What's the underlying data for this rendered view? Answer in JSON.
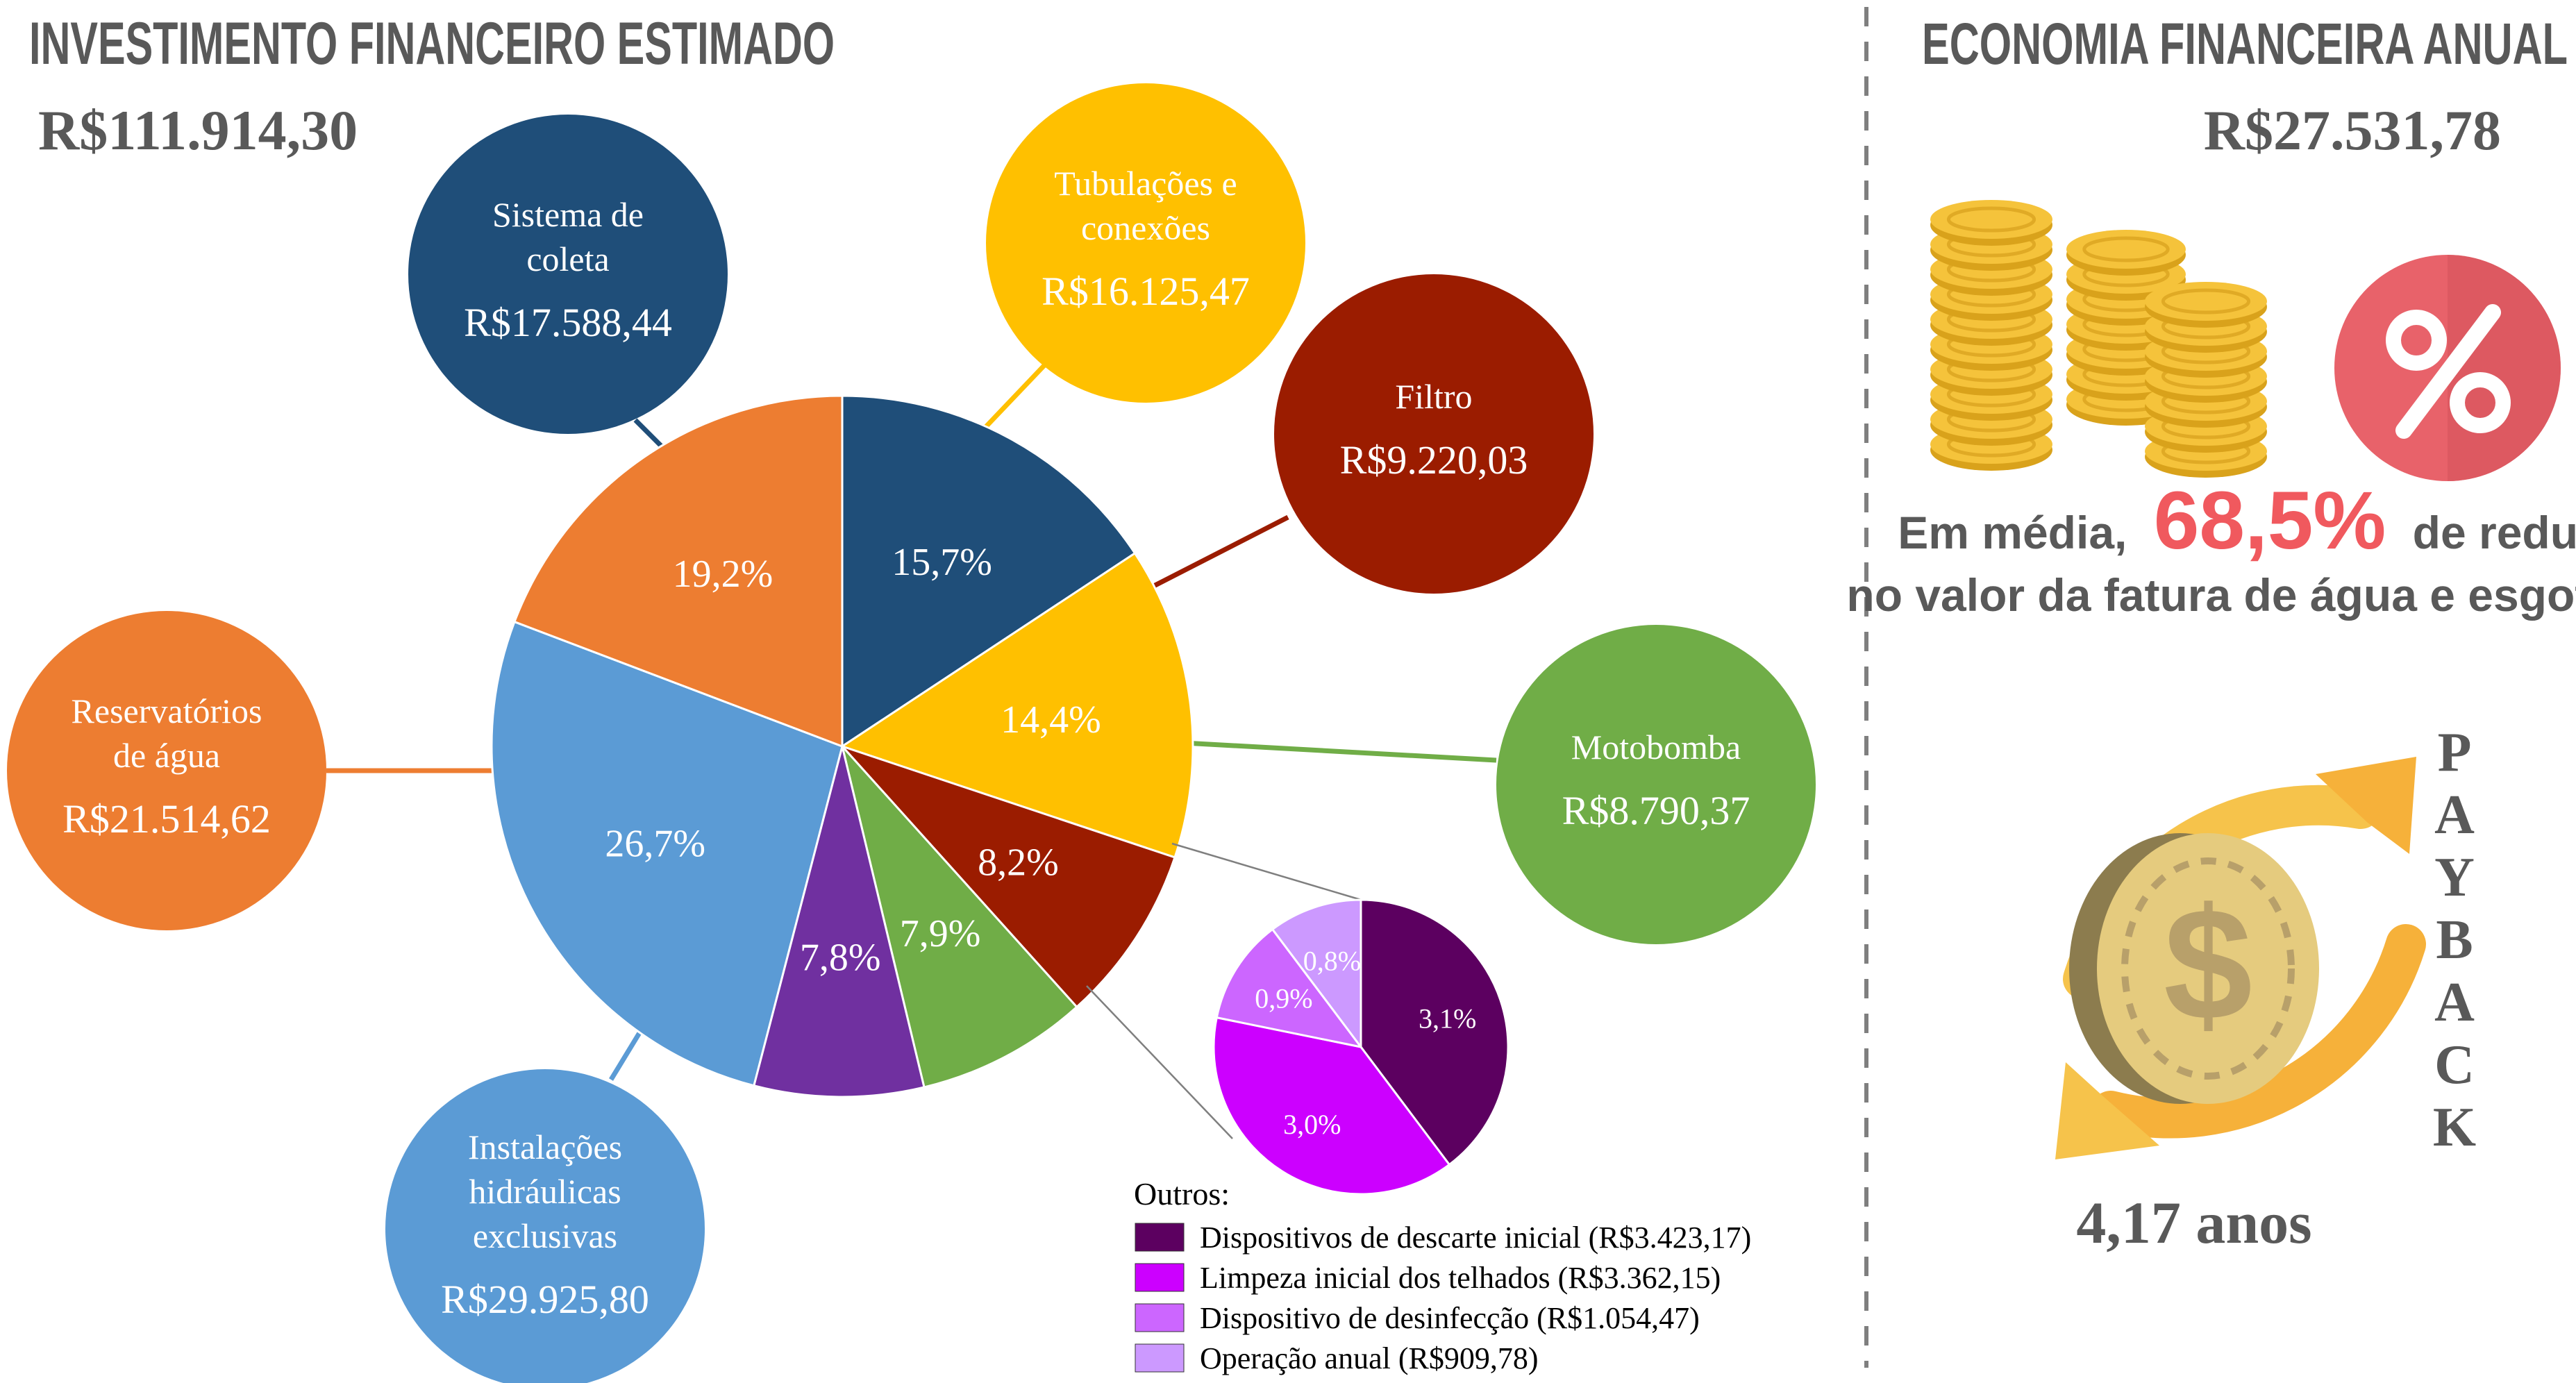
{
  "left_panel": {
    "title": "INVESTIMENTO FINANCEIRO ESTIMADO",
    "total": "R$111.914,30"
  },
  "right_panel": {
    "title": "ECONOMIA FINANCEIRA ANUAL",
    "total": "R$27.531,78",
    "reduction_prefix": "Em média,",
    "reduction_value": "68,5%",
    "reduction_suffix": "de redução",
    "reduction_line2": "no valor da fatura de água e esgoto",
    "payback_label": "PAYBACK",
    "payback_value": "4,17 anos"
  },
  "chart_data": [
    {
      "type": "pie",
      "unit": "percent",
      "slices": [
        {
          "label": "Sistema de coleta",
          "amount": "R$17.588,44",
          "value": 15.7,
          "value_label": "15,7%",
          "color": "#1F4E79"
        },
        {
          "label": "Tubulações e conexões",
          "amount": "R$16.125,47",
          "value": 14.4,
          "value_label": "14,4%",
          "color": "#FFC000"
        },
        {
          "label": "Filtro",
          "amount": "R$9.220,03",
          "value": 8.2,
          "value_label": "8,2%",
          "color": "#9B1C00"
        },
        {
          "label": "Motobomba",
          "amount": "R$8.790,37",
          "value": 7.9,
          "value_label": "7,9%",
          "color": "#70AD47"
        },
        {
          "label": "Outros",
          "amount": "",
          "value": 7.8,
          "value_label": "7,8%",
          "color": "#7030A0"
        },
        {
          "label": "Instalações hidráulicas exclusivas",
          "amount": "R$29.925,80",
          "value": 26.7,
          "value_label": "26,7%",
          "color": "#5B9BD5"
        },
        {
          "label": "Reservatórios de água",
          "amount": "R$21.514,62",
          "value": 19.2,
          "value_label": "19,2%",
          "color": "#ED7D31"
        }
      ]
    },
    {
      "type": "pie",
      "title": "Outros:",
      "unit": "percent",
      "slices": [
        {
          "label": "Dispositivos de descarte inicial (R$3.423,17)",
          "value": 3.1,
          "value_label": "3,1%",
          "color": "#5C0060"
        },
        {
          "label": "Limpeza inicial dos telhados (R$3.362,15)",
          "value": 3.0,
          "value_label": "3,0%",
          "color": "#CC00FF"
        },
        {
          "label": "Dispositivo de desinfecção (R$1.054,47)",
          "value": 0.9,
          "value_label": "0,9%",
          "color": "#CC66FF"
        },
        {
          "label": "Operação anual (R$909,78)",
          "value": 0.8,
          "value_label": "0,8%",
          "color": "#CC99FF"
        }
      ]
    }
  ]
}
